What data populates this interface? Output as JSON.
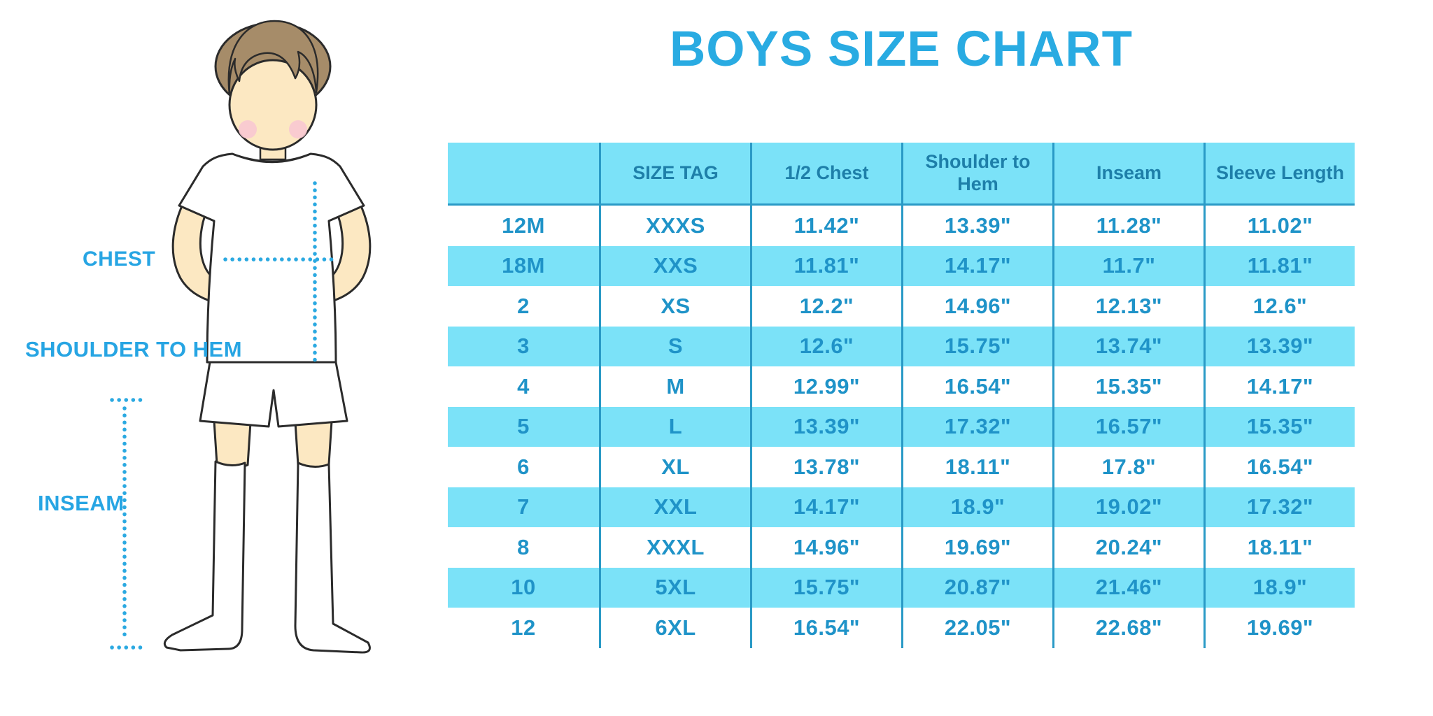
{
  "title": "BOYS SIZE CHART",
  "figure": {
    "labels": {
      "chest": "CHEST",
      "shoulder_to_hem": "SHOULDER TO HEM",
      "inseam": "INSEAM"
    }
  },
  "colors": {
    "title_blue": "#29ABE2",
    "label_blue": "#27A5E3",
    "stripe_fill": "#7BE2F8",
    "header_text": "#1E7FA9",
    "cell_text": "#1F93C8",
    "grid_line": "#2A9AC6",
    "dotted_line": "#2BA9E1",
    "skin": "#FCE8C2",
    "hair": "#A68C69",
    "blush": "#F8C8D2",
    "outline": "#2B2B2B"
  },
  "chart_data": {
    "type": "table",
    "title": "BOYS SIZE CHART",
    "columns": [
      "",
      "SIZE TAG",
      "1/2 Chest",
      "Shoulder to Hem",
      "Inseam",
      "Sleeve Length"
    ],
    "rows": [
      [
        "12M",
        "XXXS",
        "11.42\"",
        "13.39\"",
        "11.28\"",
        "11.02\""
      ],
      [
        "18M",
        "XXS",
        "11.81\"",
        "14.17\"",
        "11.7\"",
        "11.81\""
      ],
      [
        "2",
        "XS",
        "12.2\"",
        "14.96\"",
        "12.13\"",
        "12.6\""
      ],
      [
        "3",
        "S",
        "12.6\"",
        "15.75\"",
        "13.74\"",
        "13.39\""
      ],
      [
        "4",
        "M",
        "12.99\"",
        "16.54\"",
        "15.35\"",
        "14.17\""
      ],
      [
        "5",
        "L",
        "13.39\"",
        "17.32\"",
        "16.57\"",
        "15.35\""
      ],
      [
        "6",
        "XL",
        "13.78\"",
        "18.11\"",
        "17.8\"",
        "16.54\""
      ],
      [
        "7",
        "XXL",
        "14.17\"",
        "18.9\"",
        "19.02\"",
        "17.32\""
      ],
      [
        "8",
        "XXXL",
        "14.96\"",
        "19.69\"",
        "20.24\"",
        "18.11\""
      ],
      [
        "10",
        "5XL",
        "15.75\"",
        "20.87\"",
        "21.46\"",
        "18.9\""
      ],
      [
        "12",
        "6XL",
        "16.54\"",
        "22.05\"",
        "22.68\"",
        "19.69\""
      ]
    ]
  }
}
